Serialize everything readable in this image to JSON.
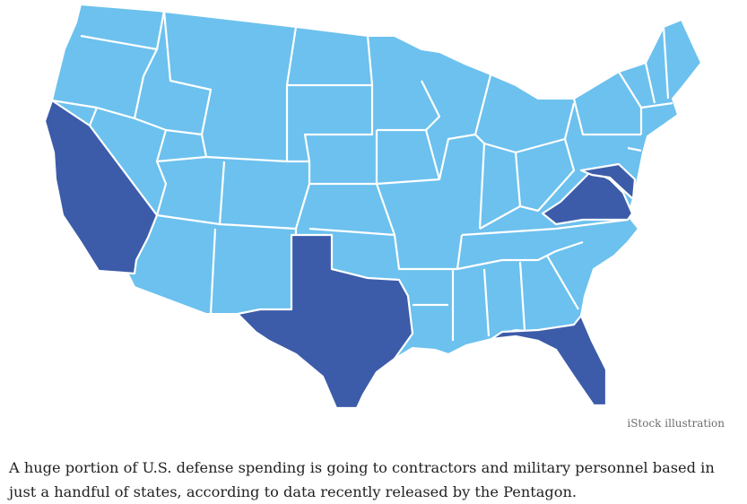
{
  "figure": {
    "credit": "iStock illustration",
    "colors": {
      "highlight": "#3c5ca9",
      "base": "#6cc1ee",
      "border": "#ffffff"
    },
    "highlighted_states": [
      "California",
      "Texas",
      "Florida",
      "Virginia",
      "Maryland"
    ]
  },
  "article": {
    "caption": "A huge portion of U.S. defense spending is going to contractors and military personnel based in just a handful of states, according to data recently released by the Pentagon."
  }
}
